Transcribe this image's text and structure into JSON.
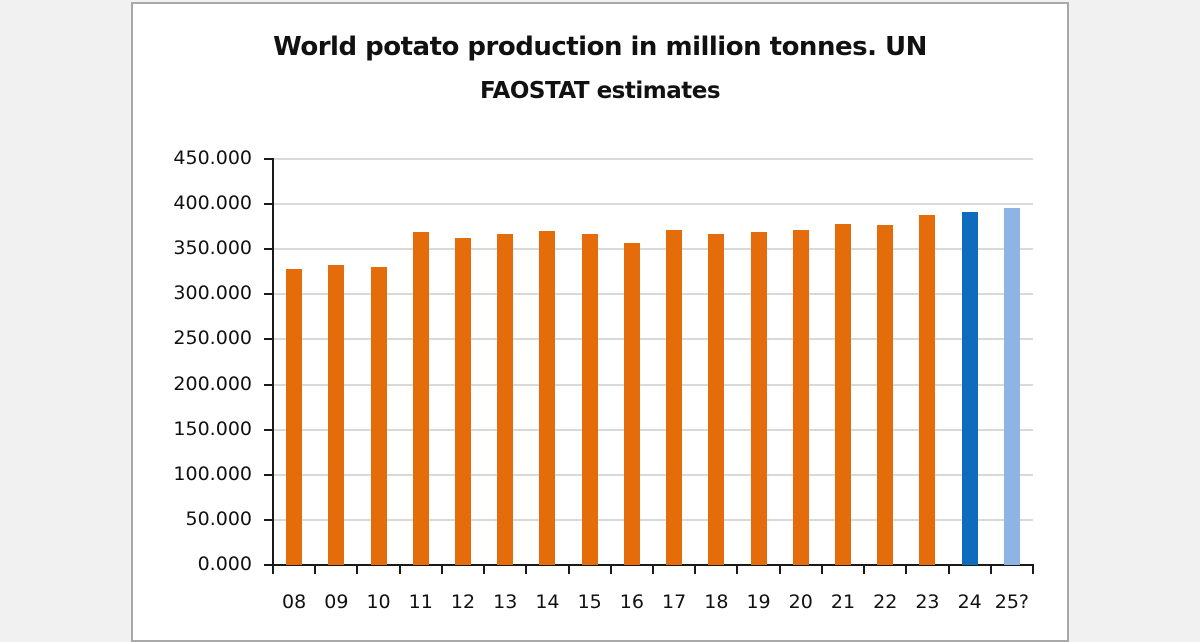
{
  "chart_data": {
    "type": "bar",
    "title": "World potato production in million tonnes. UN FAOSTAT estimates",
    "title_lines": [
      "World potato production in million tonnes. UN",
      "FAOSTAT estimates"
    ],
    "xlabel": "",
    "ylabel": "",
    "ylim": [
      0,
      450
    ],
    "yticks": [
      0,
      50,
      100,
      150,
      200,
      250,
      300,
      350,
      400,
      450
    ],
    "ytick_labels": [
      "0.000",
      "50.000",
      "100.000",
      "150.000",
      "200.000",
      "250.000",
      "300.000",
      "350.000",
      "400.000",
      "450.000"
    ],
    "grid": true,
    "legend": null,
    "categories": [
      "08",
      "09",
      "10",
      "11",
      "12",
      "13",
      "14",
      "15",
      "16",
      "17",
      "18",
      "19",
      "20",
      "21",
      "22",
      "23",
      "24",
      "25?"
    ],
    "values": [
      328,
      332,
      330,
      369,
      362,
      367,
      370,
      367,
      357,
      371,
      367,
      369,
      371,
      378,
      377,
      388,
      391,
      396
    ],
    "bar_colors": [
      "#e46c0a",
      "#e46c0a",
      "#e46c0a",
      "#e46c0a",
      "#e46c0a",
      "#e46c0a",
      "#e46c0a",
      "#e46c0a",
      "#e46c0a",
      "#e46c0a",
      "#e46c0a",
      "#e46c0a",
      "#e46c0a",
      "#e46c0a",
      "#e46c0a",
      "#e46c0a",
      "#0f6cbd",
      "#8eb4e3"
    ]
  },
  "colors": {
    "estimate": "#e46c0a",
    "current": "#0f6cbd",
    "forecast": "#8eb4e3"
  }
}
